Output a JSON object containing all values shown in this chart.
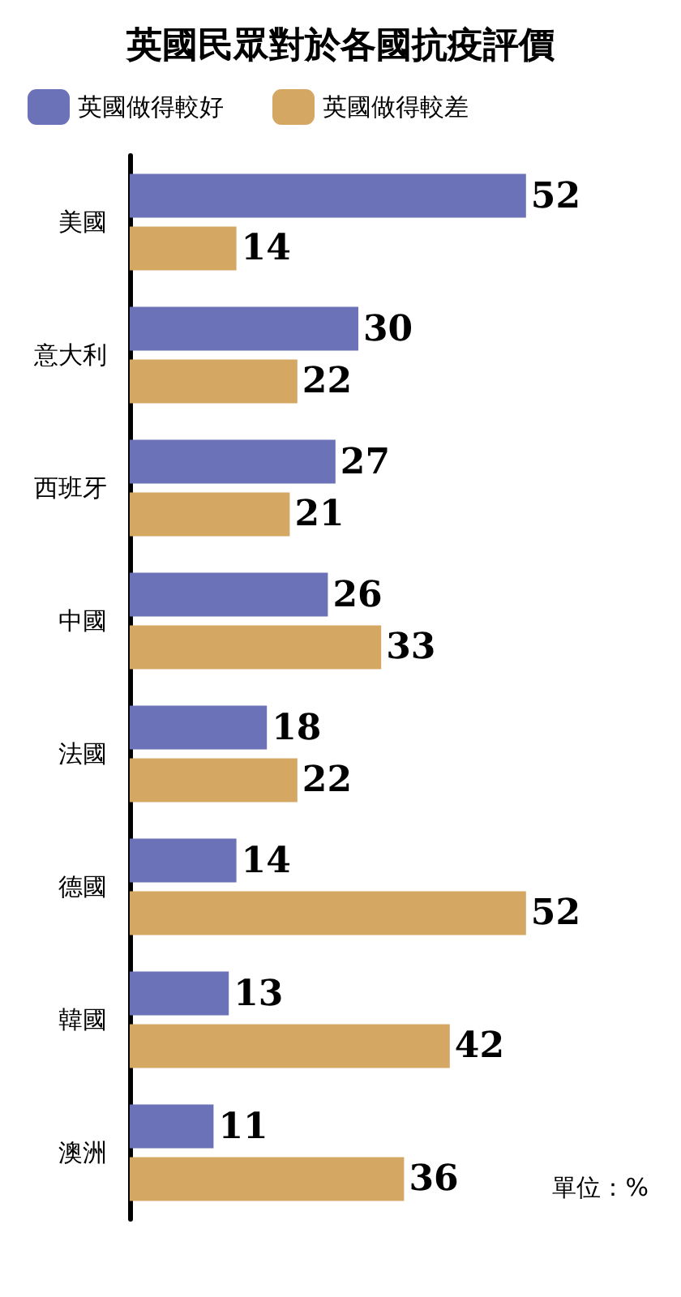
{
  "chart_data": {
    "type": "bar",
    "orientation": "horizontal",
    "title": "英國民眾對於各國抗疫評價",
    "categories": [
      "美國",
      "意大利",
      "西班牙",
      "中國",
      "法國",
      "德國",
      "韓國",
      "澳洲"
    ],
    "series": [
      {
        "name": "英國做得較好",
        "color": "#6b72b8",
        "values": [
          52,
          30,
          27,
          26,
          18,
          14,
          13,
          11
        ]
      },
      {
        "name": "英國做得較差",
        "color": "#d4a862",
        "values": [
          14,
          22,
          21,
          33,
          22,
          52,
          42,
          36
        ]
      }
    ],
    "data_labels": true,
    "legend": "top left",
    "tick_labels": "y",
    "annotations": [
      "單位：%"
    ]
  }
}
